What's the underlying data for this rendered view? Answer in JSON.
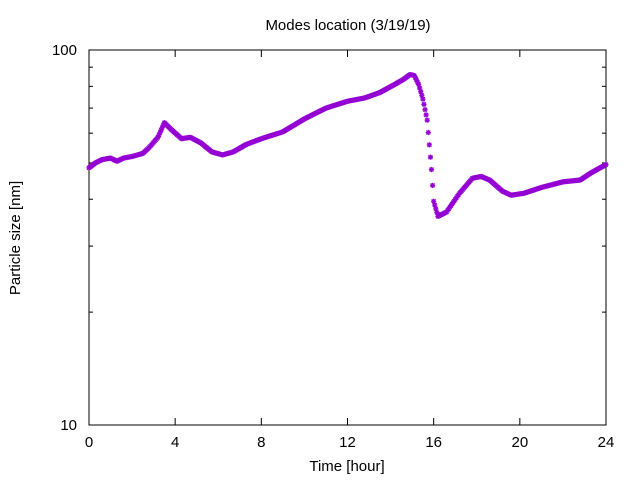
{
  "chart_data": {
    "type": "scatter",
    "title": "Modes location (3/19/19)",
    "xlabel": "Time [hour]",
    "ylabel": "Particle size [nm]",
    "xlim": [
      0,
      24
    ],
    "ylim": [
      10,
      100
    ],
    "yscale": "log",
    "grid": false,
    "marker_color": "#9400d3",
    "x_ticks": [
      0,
      4,
      8,
      12,
      16,
      20,
      24
    ],
    "x_tick_labels": [
      "0",
      "4",
      "8",
      "12",
      "16",
      "20",
      "24"
    ],
    "y_tick_labels": [
      {
        "value": 10,
        "label": "10"
      },
      {
        "value": 100,
        "label": "100"
      }
    ],
    "y_minor_ticks": [
      20,
      30,
      40,
      50,
      60,
      70,
      80,
      90
    ],
    "keypoints": [
      [
        0.0,
        48.5
      ],
      [
        0.3,
        50.0
      ],
      [
        0.6,
        51.0
      ],
      [
        1.0,
        51.5
      ],
      [
        1.3,
        50.5
      ],
      [
        1.6,
        51.5
      ],
      [
        2.0,
        52.0
      ],
      [
        2.5,
        53.0
      ],
      [
        2.8,
        55.0
      ],
      [
        3.2,
        58.5
      ],
      [
        3.5,
        64.0
      ],
      [
        3.8,
        61.5
      ],
      [
        4.3,
        58.0
      ],
      [
        4.7,
        58.5
      ],
      [
        5.2,
        56.5
      ],
      [
        5.7,
        53.5
      ],
      [
        6.2,
        52.5
      ],
      [
        6.7,
        53.5
      ],
      [
        7.3,
        56.0
      ],
      [
        8.0,
        58.0
      ],
      [
        9.0,
        60.5
      ],
      [
        10.0,
        65.5
      ],
      [
        11.0,
        70.0
      ],
      [
        12.0,
        73.0
      ],
      [
        12.8,
        74.5
      ],
      [
        13.5,
        77.0
      ],
      [
        14.2,
        81.0
      ],
      [
        14.6,
        83.5
      ],
      [
        14.9,
        86.0
      ],
      [
        15.1,
        85.5
      ],
      [
        15.3,
        81.0
      ],
      [
        15.5,
        74.0
      ],
      [
        15.7,
        65.0
      ],
      [
        15.9,
        48.0
      ],
      [
        16.0,
        39.5
      ],
      [
        16.2,
        36.0
      ],
      [
        16.6,
        37.0
      ],
      [
        17.2,
        41.5
      ],
      [
        17.8,
        45.5
      ],
      [
        18.2,
        46.0
      ],
      [
        18.6,
        45.0
      ],
      [
        19.2,
        42.0
      ],
      [
        19.6,
        41.0
      ],
      [
        20.2,
        41.5
      ],
      [
        21.0,
        43.0
      ],
      [
        22.0,
        44.5
      ],
      [
        22.8,
        45.0
      ],
      [
        23.3,
        47.0
      ],
      [
        24.0,
        49.5
      ]
    ],
    "points_per_hour": 20
  }
}
